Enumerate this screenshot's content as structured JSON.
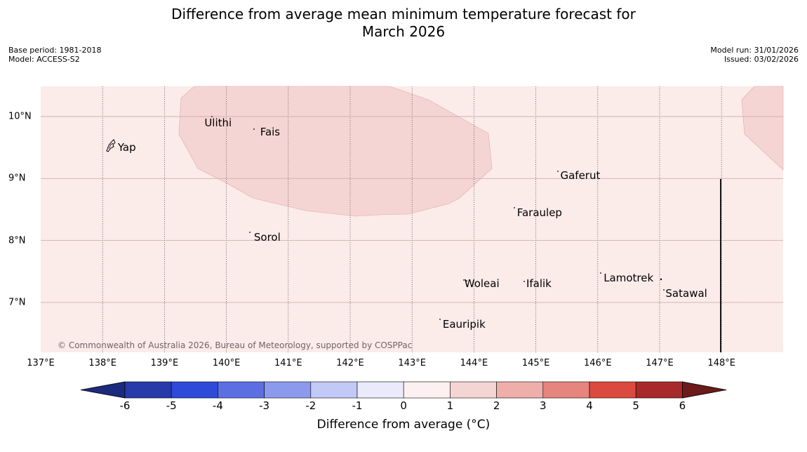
{
  "title": {
    "line1": "Difference from average mean minimum temperature forecast for",
    "line2": "March 2026"
  },
  "meta": {
    "base_period": "Base period: 1981-2018",
    "model": "Model: ACCESS-S2",
    "model_run": "Model run: 31/01/2026",
    "issued": "Issued: 03/02/2026"
  },
  "map": {
    "lon_range": [
      137,
      149
    ],
    "lat_range": [
      6.2,
      10.5
    ],
    "x_ticks": [
      {
        "value": 137,
        "label": "137°E"
      },
      {
        "value": 138,
        "label": "138°E"
      },
      {
        "value": 139,
        "label": "139°E"
      },
      {
        "value": 140,
        "label": "140°E"
      },
      {
        "value": 141,
        "label": "141°E"
      },
      {
        "value": 142,
        "label": "142°E"
      },
      {
        "value": 143,
        "label": "143°E"
      },
      {
        "value": 144,
        "label": "144°E"
      },
      {
        "value": 145,
        "label": "145°E"
      },
      {
        "value": 146,
        "label": "146°E"
      },
      {
        "value": 147,
        "label": "147°E"
      },
      {
        "value": 148,
        "label": "148°E"
      }
    ],
    "y_ticks": [
      {
        "value": 10,
        "label": "10°N"
      },
      {
        "value": 9,
        "label": "9°N"
      },
      {
        "value": 8,
        "label": "8°N"
      },
      {
        "value": 7,
        "label": "7°N"
      }
    ],
    "places": [
      {
        "name": "Yap",
        "lon": 138.2,
        "lat": 9.5
      },
      {
        "name": "Ulithi",
        "lon": 139.6,
        "lat": 9.9
      },
      {
        "name": "Fais",
        "lon": 140.5,
        "lat": 9.75
      },
      {
        "name": "Gaferut",
        "lon": 145.35,
        "lat": 9.05
      },
      {
        "name": "Faraulep",
        "lon": 144.65,
        "lat": 8.45
      },
      {
        "name": "Sorol",
        "lon": 140.4,
        "lat": 8.05
      },
      {
        "name": "Lamotrek",
        "lon": 146.05,
        "lat": 7.4
      },
      {
        "name": "Woleai",
        "lon": 143.8,
        "lat": 7.3
      },
      {
        "name": "Ifalik",
        "lon": 144.8,
        "lat": 7.3
      },
      {
        "name": "Satawal",
        "lon": 147.05,
        "lat": 7.15
      },
      {
        "name": "Eauripik",
        "lon": 143.45,
        "lat": 6.65
      }
    ],
    "boundary_line": {
      "lon": 148,
      "lat_from": 9.0,
      "lat_to": 6.2
    },
    "copyright": "© Commonwealth of Australia 2026, Bureau of Meteorology, supported by COSPPac",
    "colors": {
      "background_band": "#fbebe9",
      "warm_band": "#f5d5d3"
    }
  },
  "colorbar": {
    "title": "Difference from average (°C)",
    "labels": [
      "-6",
      "-5",
      "-4",
      "-3",
      "-2",
      "-1",
      "0",
      "1",
      "2",
      "3",
      "4",
      "5",
      "6"
    ],
    "colors": [
      "#263aa9",
      "#2f4ad9",
      "#5b6fe3",
      "#8c9aee",
      "#c3c9f6",
      "#e9ebfc",
      "#fdf0f0",
      "#f5d5d3",
      "#eeaea9",
      "#e6847e",
      "#da4a3f",
      "#a8292a"
    ],
    "under_color": "#1c2a7e",
    "over_color": "#6c1a1a"
  },
  "chart_data": {
    "type": "map",
    "title": "Difference from average mean minimum temperature forecast for March 2026",
    "variable": "Mean minimum temperature anomaly",
    "units": "°C",
    "region": {
      "lon": [
        137,
        149
      ],
      "lat": [
        6.2,
        10.5
      ]
    },
    "dominant_category": "0 to 1",
    "secondary_category": "1 to 2",
    "secondary_areas": [
      "central-northern region (approx 139.3°E–144.3°E, 8.4°N–10.5°N)",
      "northeast corner (approx 148.3°E–149°E, 9.2°N–10.5°N)"
    ],
    "colorbar_ticks": [
      -6,
      -5,
      -4,
      -3,
      -2,
      -1,
      0,
      1,
      2,
      3,
      4,
      5,
      6
    ]
  }
}
